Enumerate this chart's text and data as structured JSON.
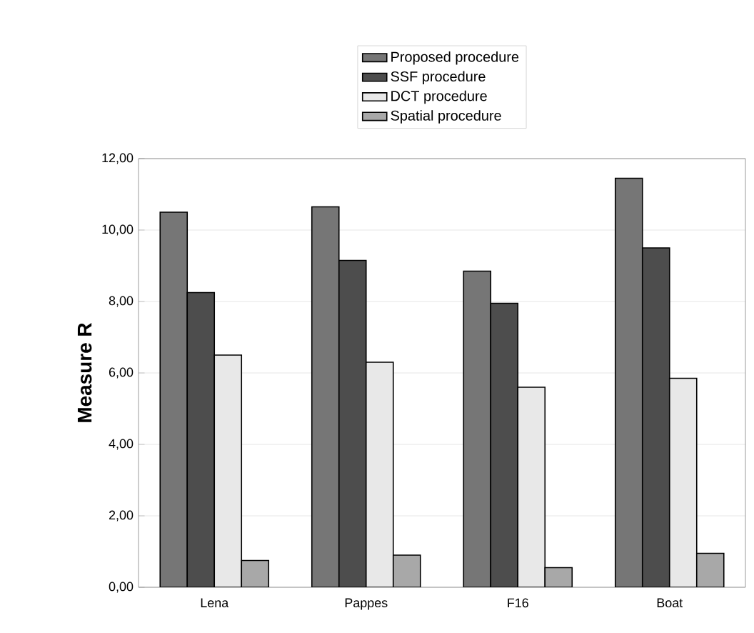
{
  "chart_data": {
    "type": "bar",
    "ylabel": "Measure R",
    "categories": [
      "Lena",
      "Pappes",
      "F16",
      "Boat"
    ],
    "series": [
      {
        "name": "Proposed procedure",
        "color": "#767676",
        "values": [
          10.5,
          10.65,
          8.85,
          11.45
        ]
      },
      {
        "name": "SSF procedure",
        "color": "#4d4d4d",
        "values": [
          8.25,
          9.15,
          7.95,
          9.5
        ]
      },
      {
        "name": "DCT procedure",
        "color": "#e8e8e8",
        "values": [
          6.5,
          6.3,
          5.6,
          5.85
        ]
      },
      {
        "name": "Spatial procedure",
        "color": "#a8a8a8",
        "values": [
          0.75,
          0.9,
          0.55,
          0.95
        ]
      }
    ],
    "ylim": [
      0,
      12
    ],
    "yticks": [
      {
        "value": 0,
        "label": "0,00"
      },
      {
        "value": 2,
        "label": "2,00"
      },
      {
        "value": 4,
        "label": "4,00"
      },
      {
        "value": 6,
        "label": "6,00"
      },
      {
        "value": 8,
        "label": "8,00"
      },
      {
        "value": 10,
        "label": "10,00"
      },
      {
        "value": 12,
        "label": "12,00"
      }
    ],
    "grid": "y",
    "legend": "top"
  }
}
